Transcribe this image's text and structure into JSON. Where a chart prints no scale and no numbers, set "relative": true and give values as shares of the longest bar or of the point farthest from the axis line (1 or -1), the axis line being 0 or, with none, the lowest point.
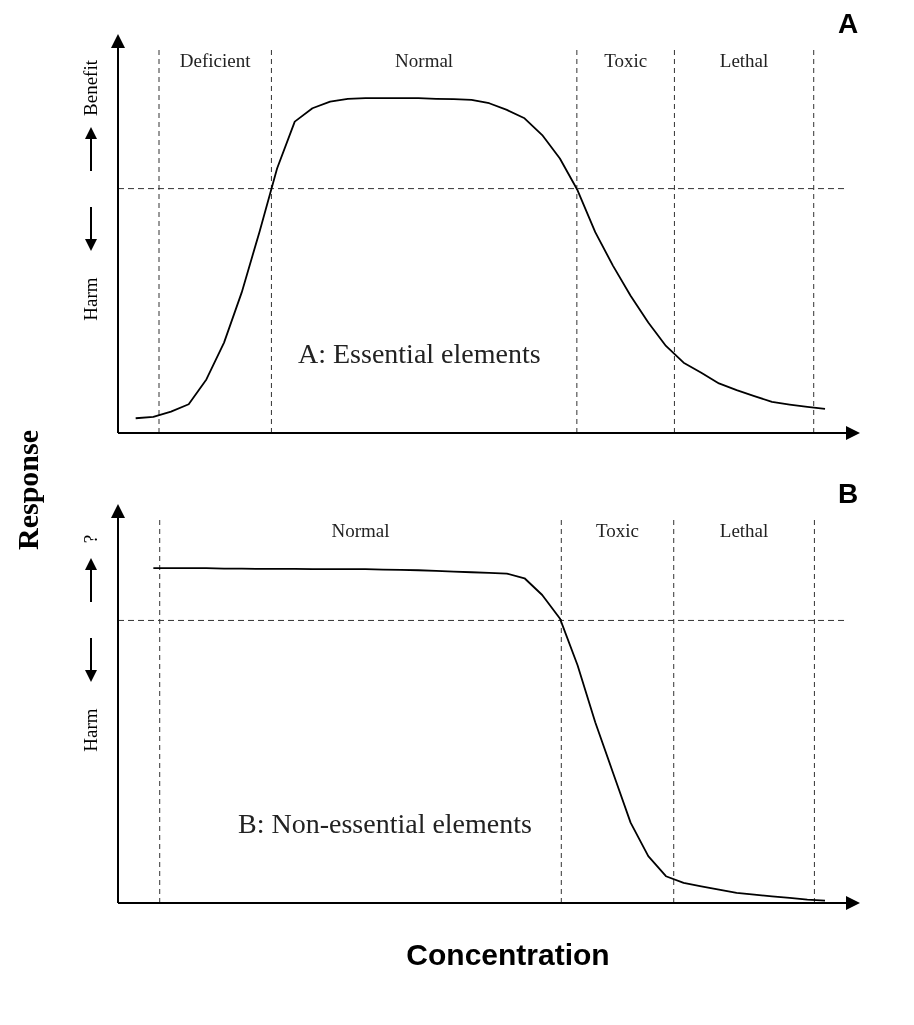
{
  "chart_data": [
    {
      "type": "line",
      "title": "A",
      "relative": true,
      "grid": false,
      "legend": false,
      "marker": "none",
      "line_style": "solid",
      "categories": [
        null,
        null,
        null,
        null,
        null,
        null,
        null,
        null,
        null,
        null,
        null,
        null,
        null,
        null,
        null,
        null,
        null,
        null,
        null,
        null,
        null,
        null,
        null,
        null,
        null,
        null,
        null,
        null,
        null,
        null,
        null,
        null,
        null,
        null,
        null,
        null,
        null,
        null,
        null,
        null
      ],
      "series": [
        {
          "color": "#000000",
          "values": [
            0.044,
            0.048,
            0.064,
            0.086,
            0.16,
            0.27,
            0.42,
            0.6,
            0.79,
            0.93,
            0.97,
            0.99,
            0.998,
            1,
            1,
            1,
            1,
            0.998,
            0.997,
            0.995,
            0.985,
            0.965,
            0.94,
            0.89,
            0.82,
            0.725,
            0.6,
            0.5,
            0.41,
            0.33,
            0.26,
            0.21,
            0.18,
            0.148,
            0.128,
            0.11,
            0.093,
            0.085,
            0.078,
            0.072
          ]
        }
      ],
      "ref_lines": [
        {
          "axis": "y",
          "value": 0.73,
          "line_style": "dashed"
        }
      ],
      "annotations": [
        "A: Essential elements",
        "Benefit",
        "Harm",
        "Deficient",
        "Normal",
        "Toxic",
        "Lethal"
      ]
    },
    {
      "type": "line",
      "title": "B",
      "ylabel": "Response",
      "xlabel": "Concentration",
      "relative": true,
      "grid": false,
      "legend": false,
      "marker": "none",
      "line_style": "solid",
      "categories": [
        null,
        null,
        null,
        null,
        null,
        null,
        null,
        null,
        null,
        null,
        null,
        null,
        null,
        null,
        null,
        null,
        null,
        null,
        null,
        null,
        null,
        null,
        null,
        null,
        null,
        null,
        null,
        null,
        null,
        null,
        null,
        null,
        null,
        null,
        null,
        null,
        null,
        null,
        null,
        null
      ],
      "series": [
        {
          "color": "#000000",
          "values": [
            null,
            1,
            1,
            1,
            1,
            0.999,
            0.999,
            0.998,
            0.998,
            0.998,
            0.997,
            0.997,
            0.997,
            0.997,
            0.996,
            0.995,
            0.994,
            0.992,
            0.99,
            0.988,
            0.986,
            0.984,
            0.97,
            0.92,
            0.85,
            0.71,
            0.54,
            0.39,
            0.24,
            0.14,
            0.08,
            0.06,
            0.05,
            0.04,
            0.03,
            0.025,
            0.02,
            0.015,
            0.01,
            0.007
          ]
        }
      ],
      "ref_lines": [
        {
          "axis": "y",
          "value": 0.844,
          "line_style": "dashed"
        }
      ],
      "annotations": [
        "B: Non-essential elements",
        "?",
        "Harm",
        "Normal",
        "Toxic",
        "Lethal"
      ]
    }
  ]
}
